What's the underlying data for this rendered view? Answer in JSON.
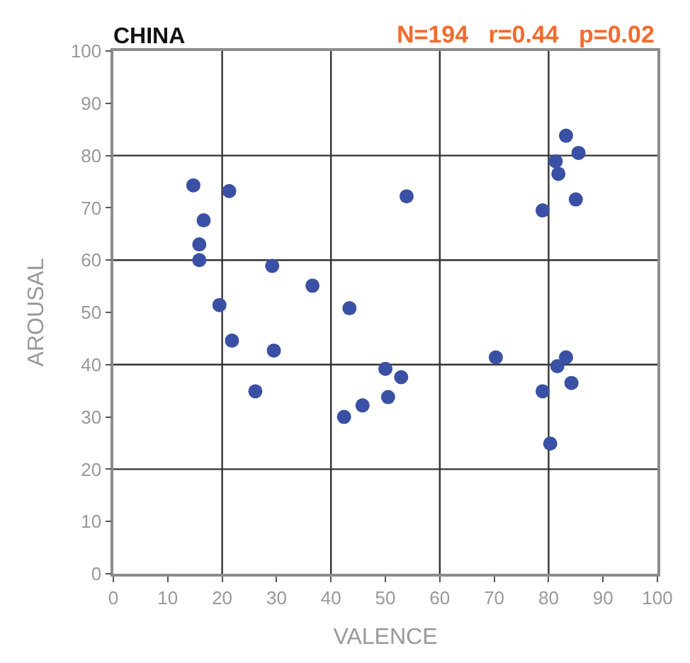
{
  "chart_data": {
    "type": "scatter",
    "title": "CHINA",
    "xlabel": "VALENCE",
    "ylabel": "AROUSAL",
    "annotations": [
      "N=194   r=0.44   p=0.02"
    ],
    "x": [
      14.7,
      21.3,
      16.6,
      15.8,
      15.8,
      29.2,
      36.6,
      19.5,
      43.4,
      21.8,
      29.5,
      26.1,
      53.9,
      50,
      52.9,
      50.5,
      45.8,
      42.4,
      83.2,
      85.5,
      81.3,
      81.8,
      85,
      78.9,
      70.3,
      83.2,
      81.6,
      84.2,
      78.9,
      80.3
    ],
    "series": [
      {
        "color": "#3a50a4",
        "values": [
          74.3,
          73.2,
          67.6,
          63,
          60,
          58.9,
          55.1,
          51.4,
          50.8,
          44.6,
          42.7,
          34.9,
          72.2,
          39.2,
          37.6,
          33.8,
          32.2,
          30,
          83.8,
          80.5,
          78.9,
          76.5,
          71.6,
          69.5,
          41.4,
          41.4,
          39.7,
          36.5,
          34.9,
          24.9
        ]
      }
    ],
    "xlim": [
      0,
      100
    ],
    "ylim": [
      0,
      100
    ],
    "xticks": [
      0,
      10,
      20,
      30,
      40,
      50,
      60,
      70,
      80,
      90,
      100
    ],
    "yticks": [
      0,
      10,
      20,
      30,
      40,
      50,
      60,
      70,
      80,
      90,
      100
    ],
    "grid": true,
    "marker": "circle"
  }
}
